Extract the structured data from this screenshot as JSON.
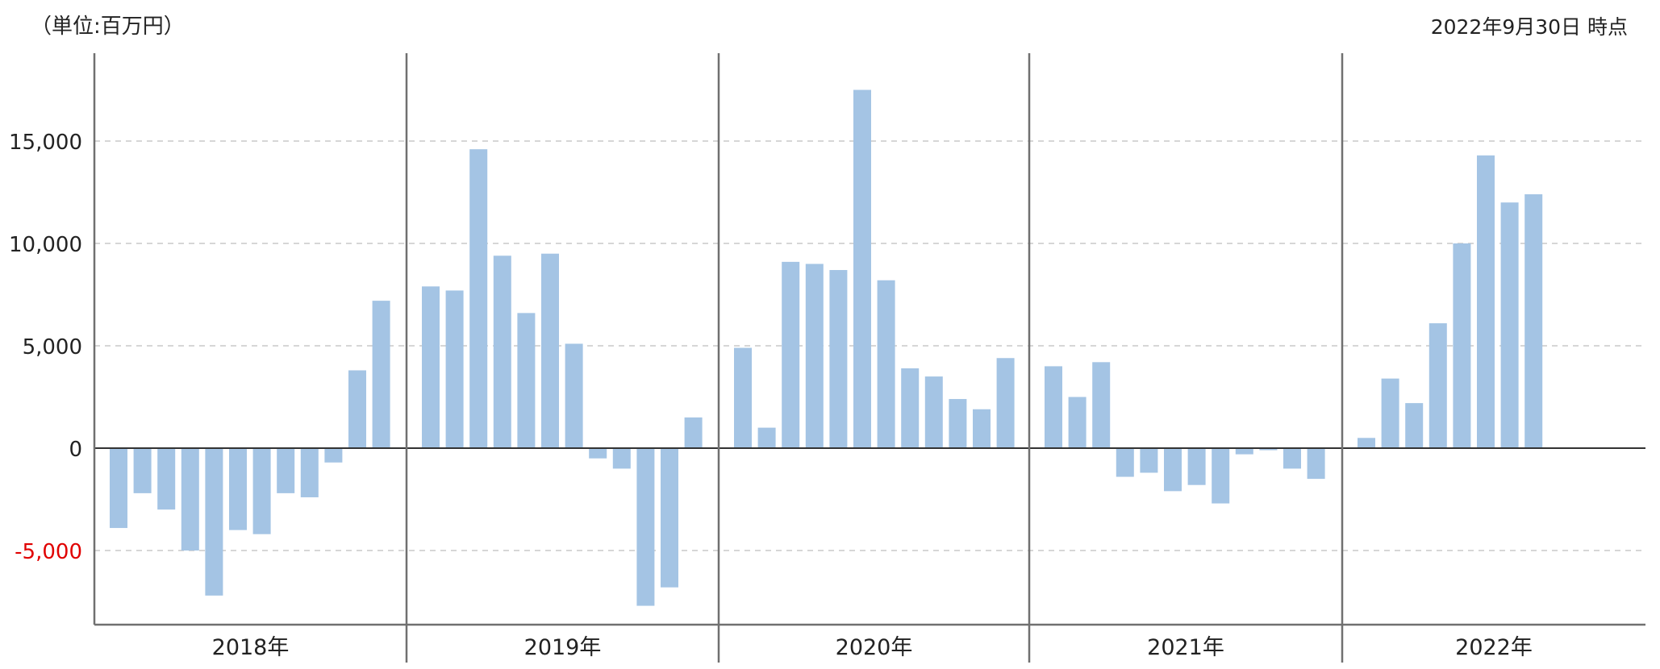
{
  "header": {
    "unit_label": "（単位:百万円）",
    "asof_label": "2022年9月30日 時点"
  },
  "colors": {
    "bar": "#a4c4e4",
    "negative_tick": "#e00000",
    "axis": "#707070",
    "grid": "#c8c8c8"
  },
  "chart_data": {
    "type": "bar",
    "ylim": [
      -8500,
      18500
    ],
    "yticks": [
      -5000,
      0,
      5000,
      10000,
      15000
    ],
    "ytick_labels": [
      "-5,000",
      "0",
      "5,000",
      "10,000",
      "15,000"
    ],
    "grid": true,
    "groups": [
      {
        "label": "2018年",
        "values": [
          -3900,
          -2200,
          -3000,
          -5000,
          -7200,
          -4000,
          -4200,
          -2200,
          -2400,
          -700,
          3800,
          7200
        ]
      },
      {
        "label": "2019年",
        "values": [
          7900,
          7700,
          14600,
          9400,
          6600,
          9500,
          5100,
          -500,
          -1000,
          -7700,
          -6800,
          1500
        ]
      },
      {
        "label": "2020年",
        "values": [
          4900,
          1000,
          9100,
          9000,
          8700,
          17500,
          8200,
          3900,
          3500,
          2400,
          1900,
          4400
        ]
      },
      {
        "label": "2021年",
        "values": [
          4000,
          2500,
          4200,
          -1400,
          -1200,
          -2100,
          -1800,
          -2700,
          -300,
          -100,
          -1000,
          -1500
        ]
      },
      {
        "label": "2022年",
        "values": [
          500,
          3400,
          2200,
          6100,
          10000,
          14300,
          12000,
          12400
        ]
      }
    ]
  }
}
